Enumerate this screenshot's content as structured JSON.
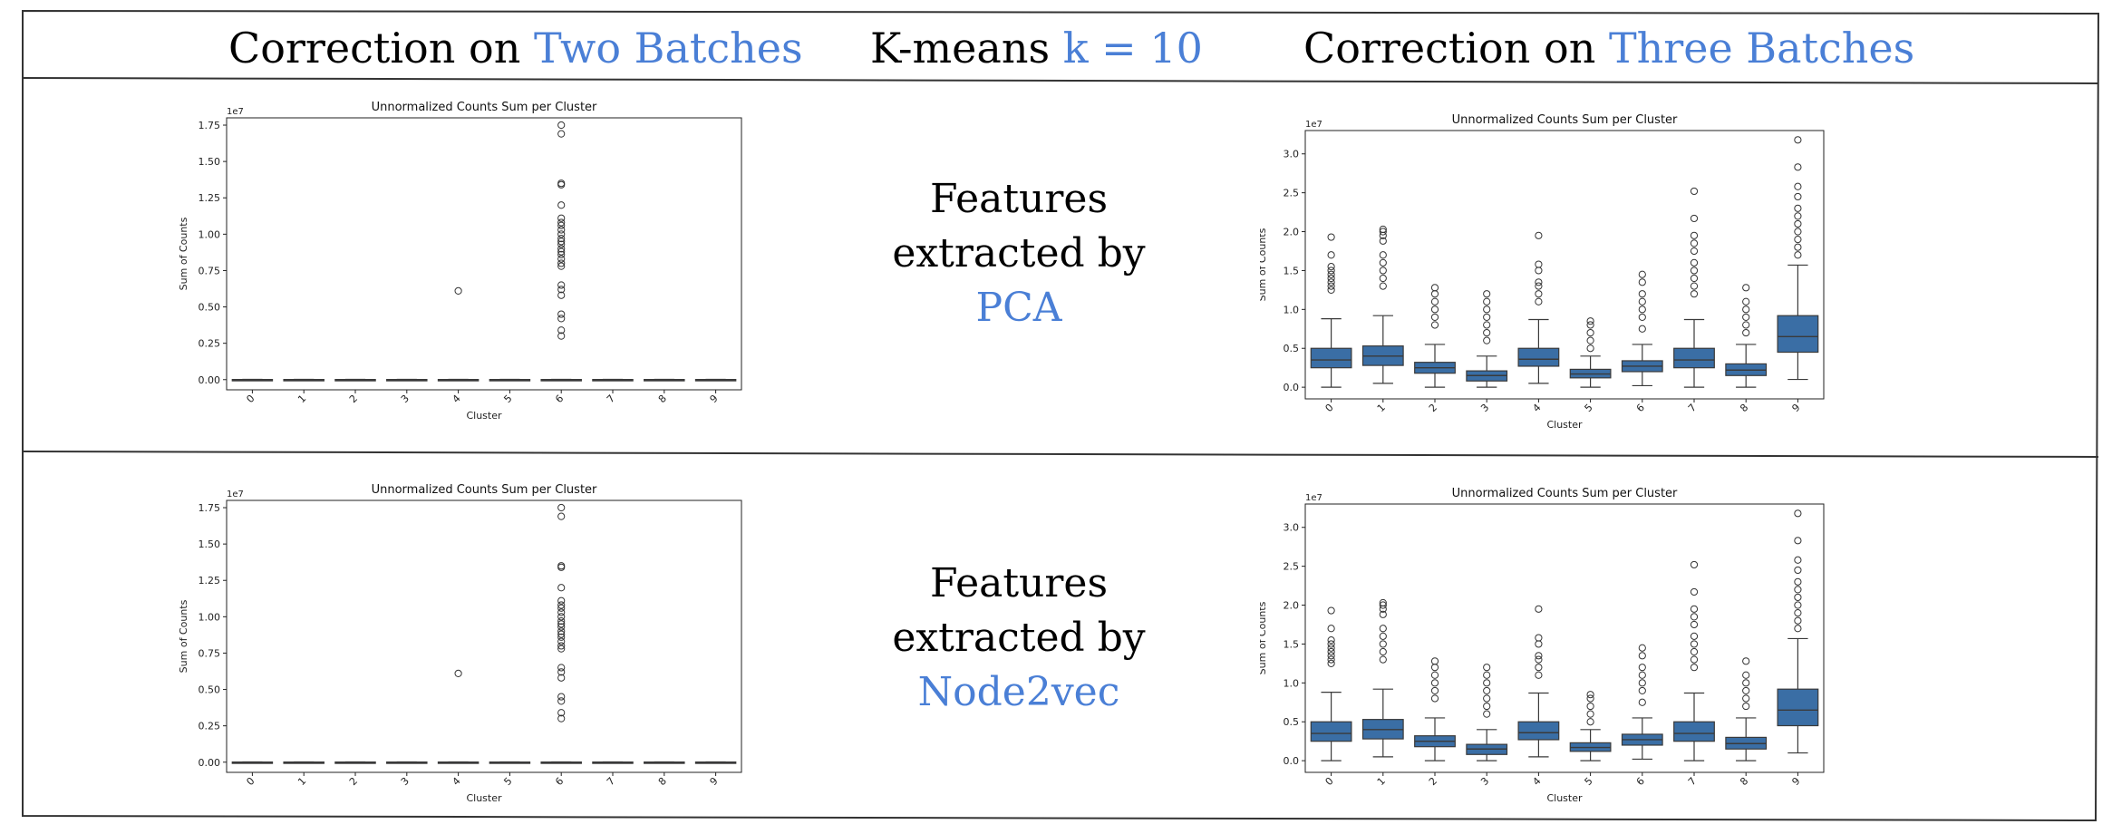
{
  "header": {
    "left_prefix": "Correction on ",
    "left_highlight": "Two Batches",
    "center_prefix": "K-means ",
    "center_highlight": "k = 10",
    "right_prefix": "Correction on ",
    "right_highlight": "Three Batches"
  },
  "rows": [
    {
      "feature_line1": "Features",
      "feature_line2": "extracted by",
      "feature_method": "PCA"
    },
    {
      "feature_line1": "Features",
      "feature_line2": "extracted by",
      "feature_method": "Node2vec"
    }
  ],
  "colors": {
    "highlight": "#4a7fd6",
    "box_fill": "#3a6ea5",
    "box_line": "#3a3a3a"
  },
  "chart_data": [
    {
      "id": "row1-two-batches",
      "type": "box",
      "title": "Unnormalized Counts Sum per Cluster",
      "xlabel": "Cluster",
      "ylabel": "Sum of Counts",
      "offset_text": "1e7",
      "categories": [
        "0",
        "1",
        "2",
        "3",
        "4",
        "5",
        "6",
        "7",
        "8",
        "9"
      ],
      "ylim": [
        -0.07,
        1.8
      ],
      "yticks": [
        0.0,
        0.25,
        0.5,
        0.75,
        1.0,
        1.25,
        1.5,
        1.75
      ],
      "yticklabels": [
        "0.00",
        "0.25",
        "0.50",
        "0.75",
        "1.00",
        "1.25",
        "1.50",
        "1.75"
      ],
      "boxes": [
        {
          "q1": 0,
          "median": 0,
          "q3": 0.001,
          "wlo": 0,
          "whi": 0.002,
          "fliers": []
        },
        {
          "q1": 0,
          "median": 0,
          "q3": 0.001,
          "wlo": 0,
          "whi": 0.002,
          "fliers": []
        },
        {
          "q1": 0,
          "median": 0,
          "q3": 0.001,
          "wlo": 0,
          "whi": 0.002,
          "fliers": []
        },
        {
          "q1": 0,
          "median": 0,
          "q3": 0.001,
          "wlo": 0,
          "whi": 0.002,
          "fliers": []
        },
        {
          "q1": 0,
          "median": 0,
          "q3": 0.001,
          "wlo": 0,
          "whi": 0.002,
          "fliers": [
            0.61
          ]
        },
        {
          "q1": 0,
          "median": 0,
          "q3": 0.001,
          "wlo": 0,
          "whi": 0.002,
          "fliers": []
        },
        {
          "q1": 0,
          "median": 0,
          "q3": 0.001,
          "wlo": 0,
          "whi": 0.002,
          "fliers": [
            0.3,
            0.34,
            0.42,
            0.45,
            0.58,
            0.62,
            0.65,
            0.78,
            0.8,
            0.83,
            0.86,
            0.88,
            0.9,
            0.93,
            0.95,
            0.97,
            1.0,
            1.03,
            1.06,
            1.08,
            1.11,
            1.2,
            1.34,
            1.35,
            1.69,
            1.75
          ]
        },
        {
          "q1": 0,
          "median": 0,
          "q3": 0.001,
          "wlo": 0,
          "whi": 0.002,
          "fliers": []
        },
        {
          "q1": 0,
          "median": 0,
          "q3": 0.001,
          "wlo": 0,
          "whi": 0.002,
          "fliers": []
        },
        {
          "q1": 0,
          "median": 0,
          "q3": 0.001,
          "wlo": 0,
          "whi": 0.002,
          "fliers": []
        }
      ]
    },
    {
      "id": "row1-three-batches",
      "type": "box",
      "title": "Unnormalized Counts Sum per Cluster",
      "xlabel": "Cluster",
      "ylabel": "Sum of Counts",
      "offset_text": "1e7",
      "categories": [
        "0",
        "1",
        "2",
        "3",
        "4",
        "5",
        "6",
        "7",
        "8",
        "9"
      ],
      "ylim": [
        -0.15,
        3.3
      ],
      "yticks": [
        0.0,
        0.5,
        1.0,
        1.5,
        2.0,
        2.5,
        3.0
      ],
      "yticklabels": [
        "0.0",
        "0.5",
        "1.0",
        "1.5",
        "2.0",
        "2.5",
        "3.0"
      ],
      "boxes": [
        {
          "q1": 0.25,
          "median": 0.35,
          "q3": 0.5,
          "wlo": 0.0,
          "whi": 0.88,
          "fliers": [
            1.25,
            1.3,
            1.35,
            1.4,
            1.45,
            1.5,
            1.55,
            1.7,
            1.93
          ]
        },
        {
          "q1": 0.28,
          "median": 0.4,
          "q3": 0.53,
          "wlo": 0.05,
          "whi": 0.92,
          "fliers": [
            1.3,
            1.4,
            1.5,
            1.6,
            1.7,
            1.88,
            1.95,
            2.0,
            2.03
          ]
        },
        {
          "q1": 0.18,
          "median": 0.25,
          "q3": 0.32,
          "wlo": 0.0,
          "whi": 0.55,
          "fliers": [
            0.8,
            0.9,
            1.0,
            1.1,
            1.2,
            1.28
          ]
        },
        {
          "q1": 0.08,
          "median": 0.15,
          "q3": 0.21,
          "wlo": 0.0,
          "whi": 0.4,
          "fliers": [
            0.6,
            0.7,
            0.8,
            0.9,
            1.0,
            1.1,
            1.2
          ]
        },
        {
          "q1": 0.27,
          "median": 0.36,
          "q3": 0.5,
          "wlo": 0.05,
          "whi": 0.87,
          "fliers": [
            1.1,
            1.2,
            1.3,
            1.35,
            1.5,
            1.58,
            1.95
          ]
        },
        {
          "q1": 0.12,
          "median": 0.17,
          "q3": 0.23,
          "wlo": 0.0,
          "whi": 0.4,
          "fliers": [
            0.5,
            0.6,
            0.7,
            0.8,
            0.85
          ]
        },
        {
          "q1": 0.2,
          "median": 0.27,
          "q3": 0.34,
          "wlo": 0.02,
          "whi": 0.55,
          "fliers": [
            0.75,
            0.9,
            1.0,
            1.1,
            1.2,
            1.35,
            1.45
          ]
        },
        {
          "q1": 0.25,
          "median": 0.35,
          "q3": 0.5,
          "wlo": 0.0,
          "whi": 0.87,
          "fliers": [
            1.2,
            1.3,
            1.4,
            1.5,
            1.6,
            1.75,
            1.85,
            1.95,
            2.17,
            2.52
          ]
        },
        {
          "q1": 0.15,
          "median": 0.22,
          "q3": 0.3,
          "wlo": 0.0,
          "whi": 0.55,
          "fliers": [
            0.7,
            0.8,
            0.9,
            1.0,
            1.1,
            1.28
          ]
        },
        {
          "q1": 0.45,
          "median": 0.65,
          "q3": 0.92,
          "wlo": 0.1,
          "whi": 1.57,
          "fliers": [
            1.7,
            1.8,
            1.9,
            2.0,
            2.1,
            2.2,
            2.3,
            2.45,
            2.58,
            2.83,
            3.18
          ]
        }
      ]
    },
    {
      "id": "row2-two-batches",
      "type": "box",
      "title": "Unnormalized Counts Sum per Cluster",
      "xlabel": "Cluster",
      "ylabel": "Sum of Counts",
      "offset_text": "1e7",
      "categories": [
        "0",
        "1",
        "2",
        "3",
        "4",
        "5",
        "6",
        "7",
        "8",
        "9"
      ],
      "ylim": [
        -0.07,
        1.8
      ],
      "yticks": [
        0.0,
        0.25,
        0.5,
        0.75,
        1.0,
        1.25,
        1.5,
        1.75
      ],
      "yticklabels": [
        "0.00",
        "0.25",
        "0.50",
        "0.75",
        "1.00",
        "1.25",
        "1.50",
        "1.75"
      ],
      "boxes": [
        {
          "q1": 0,
          "median": 0,
          "q3": 0.001,
          "wlo": 0,
          "whi": 0.002,
          "fliers": []
        },
        {
          "q1": 0,
          "median": 0,
          "q3": 0.001,
          "wlo": 0,
          "whi": 0.002,
          "fliers": []
        },
        {
          "q1": 0,
          "median": 0,
          "q3": 0.001,
          "wlo": 0,
          "whi": 0.002,
          "fliers": []
        },
        {
          "q1": 0,
          "median": 0,
          "q3": 0.001,
          "wlo": 0,
          "whi": 0.002,
          "fliers": []
        },
        {
          "q1": 0,
          "median": 0,
          "q3": 0.001,
          "wlo": 0,
          "whi": 0.002,
          "fliers": [
            0.61
          ]
        },
        {
          "q1": 0,
          "median": 0,
          "q3": 0.001,
          "wlo": 0,
          "whi": 0.002,
          "fliers": []
        },
        {
          "q1": 0,
          "median": 0,
          "q3": 0.001,
          "wlo": 0,
          "whi": 0.002,
          "fliers": [
            0.3,
            0.34,
            0.42,
            0.45,
            0.58,
            0.62,
            0.65,
            0.78,
            0.8,
            0.83,
            0.86,
            0.88,
            0.9,
            0.93,
            0.95,
            0.97,
            1.0,
            1.03,
            1.06,
            1.08,
            1.11,
            1.2,
            1.34,
            1.35,
            1.69,
            1.75
          ]
        },
        {
          "q1": 0,
          "median": 0,
          "q3": 0.001,
          "wlo": 0,
          "whi": 0.002,
          "fliers": []
        },
        {
          "q1": 0,
          "median": 0,
          "q3": 0.001,
          "wlo": 0,
          "whi": 0.002,
          "fliers": []
        },
        {
          "q1": 0,
          "median": 0,
          "q3": 0.001,
          "wlo": 0,
          "whi": 0.002,
          "fliers": []
        }
      ]
    },
    {
      "id": "row2-three-batches",
      "type": "box",
      "title": "Unnormalized Counts Sum per Cluster",
      "xlabel": "Cluster",
      "ylabel": "Sum of Counts",
      "offset_text": "1e7",
      "categories": [
        "0",
        "1",
        "2",
        "3",
        "4",
        "5",
        "6",
        "7",
        "8",
        "9"
      ],
      "ylim": [
        -0.15,
        3.3
      ],
      "yticks": [
        0.0,
        0.5,
        1.0,
        1.5,
        2.0,
        2.5,
        3.0
      ],
      "yticklabels": [
        "0.0",
        "0.5",
        "1.0",
        "1.5",
        "2.0",
        "2.5",
        "3.0"
      ],
      "boxes": [
        {
          "q1": 0.25,
          "median": 0.35,
          "q3": 0.5,
          "wlo": 0.0,
          "whi": 0.88,
          "fliers": [
            1.25,
            1.3,
            1.35,
            1.4,
            1.45,
            1.5,
            1.55,
            1.7,
            1.93
          ]
        },
        {
          "q1": 0.28,
          "median": 0.4,
          "q3": 0.53,
          "wlo": 0.05,
          "whi": 0.92,
          "fliers": [
            1.3,
            1.4,
            1.5,
            1.6,
            1.7,
            1.88,
            1.95,
            2.0,
            2.03
          ]
        },
        {
          "q1": 0.18,
          "median": 0.25,
          "q3": 0.32,
          "wlo": 0.0,
          "whi": 0.55,
          "fliers": [
            0.8,
            0.9,
            1.0,
            1.1,
            1.2,
            1.28
          ]
        },
        {
          "q1": 0.08,
          "median": 0.15,
          "q3": 0.21,
          "wlo": 0.0,
          "whi": 0.4,
          "fliers": [
            0.6,
            0.7,
            0.8,
            0.9,
            1.0,
            1.1,
            1.2
          ]
        },
        {
          "q1": 0.27,
          "median": 0.36,
          "q3": 0.5,
          "wlo": 0.05,
          "whi": 0.87,
          "fliers": [
            1.1,
            1.2,
            1.3,
            1.35,
            1.5,
            1.58,
            1.95
          ]
        },
        {
          "q1": 0.12,
          "median": 0.17,
          "q3": 0.23,
          "wlo": 0.0,
          "whi": 0.4,
          "fliers": [
            0.5,
            0.6,
            0.7,
            0.8,
            0.85
          ]
        },
        {
          "q1": 0.2,
          "median": 0.27,
          "q3": 0.34,
          "wlo": 0.02,
          "whi": 0.55,
          "fliers": [
            0.75,
            0.9,
            1.0,
            1.1,
            1.2,
            1.35,
            1.45
          ]
        },
        {
          "q1": 0.25,
          "median": 0.35,
          "q3": 0.5,
          "wlo": 0.0,
          "whi": 0.87,
          "fliers": [
            1.2,
            1.3,
            1.4,
            1.5,
            1.6,
            1.75,
            1.85,
            1.95,
            2.17,
            2.52
          ]
        },
        {
          "q1": 0.15,
          "median": 0.22,
          "q3": 0.3,
          "wlo": 0.0,
          "whi": 0.55,
          "fliers": [
            0.7,
            0.8,
            0.9,
            1.0,
            1.1,
            1.28
          ]
        },
        {
          "q1": 0.45,
          "median": 0.65,
          "q3": 0.92,
          "wlo": 0.1,
          "whi": 1.57,
          "fliers": [
            1.7,
            1.8,
            1.9,
            2.0,
            2.1,
            2.2,
            2.3,
            2.45,
            2.58,
            2.83,
            3.18
          ]
        }
      ]
    }
  ]
}
